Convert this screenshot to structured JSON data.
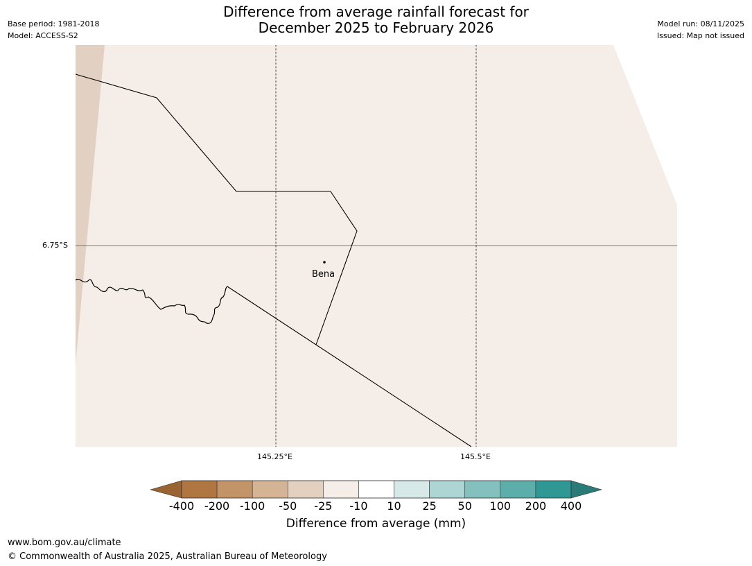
{
  "header": {
    "base_period": "Base period: 1981-2018",
    "model": "Model: ACCESS-S2",
    "title_line1": "Difference from average rainfall forecast for",
    "title_line2": "December 2025 to February 2026",
    "model_run": "Model run: 08/11/2025",
    "issued": "Issued: Map not issued"
  },
  "map": {
    "lat_tick": "6.75°S",
    "lon_ticks": [
      "145.25°E",
      "145.5°E"
    ],
    "place_label": "Bena",
    "background_color": "#f4ede8",
    "dry_band_color": "#e2d1c2"
  },
  "colorbar": {
    "labels": [
      "-400",
      "-200",
      "-100",
      "-50",
      "-25",
      "-10",
      "10",
      "25",
      "50",
      "100",
      "200",
      "400"
    ],
    "colors": [
      "#9a6432",
      "#b07642",
      "#c39468",
      "#d4b494",
      "#e3d0bf",
      "#f4ede8",
      "#ffffff",
      "#d6e9e8",
      "#acd5d4",
      "#84c0bd",
      "#5caeab",
      "#2f9895",
      "#2a7b78"
    ],
    "title": "Difference from average (mm)"
  },
  "footer": {
    "url": "www.bom.gov.au/climate",
    "copyright": "© Commonwealth of Australia 2025, Australian Bureau of Meteorology"
  }
}
